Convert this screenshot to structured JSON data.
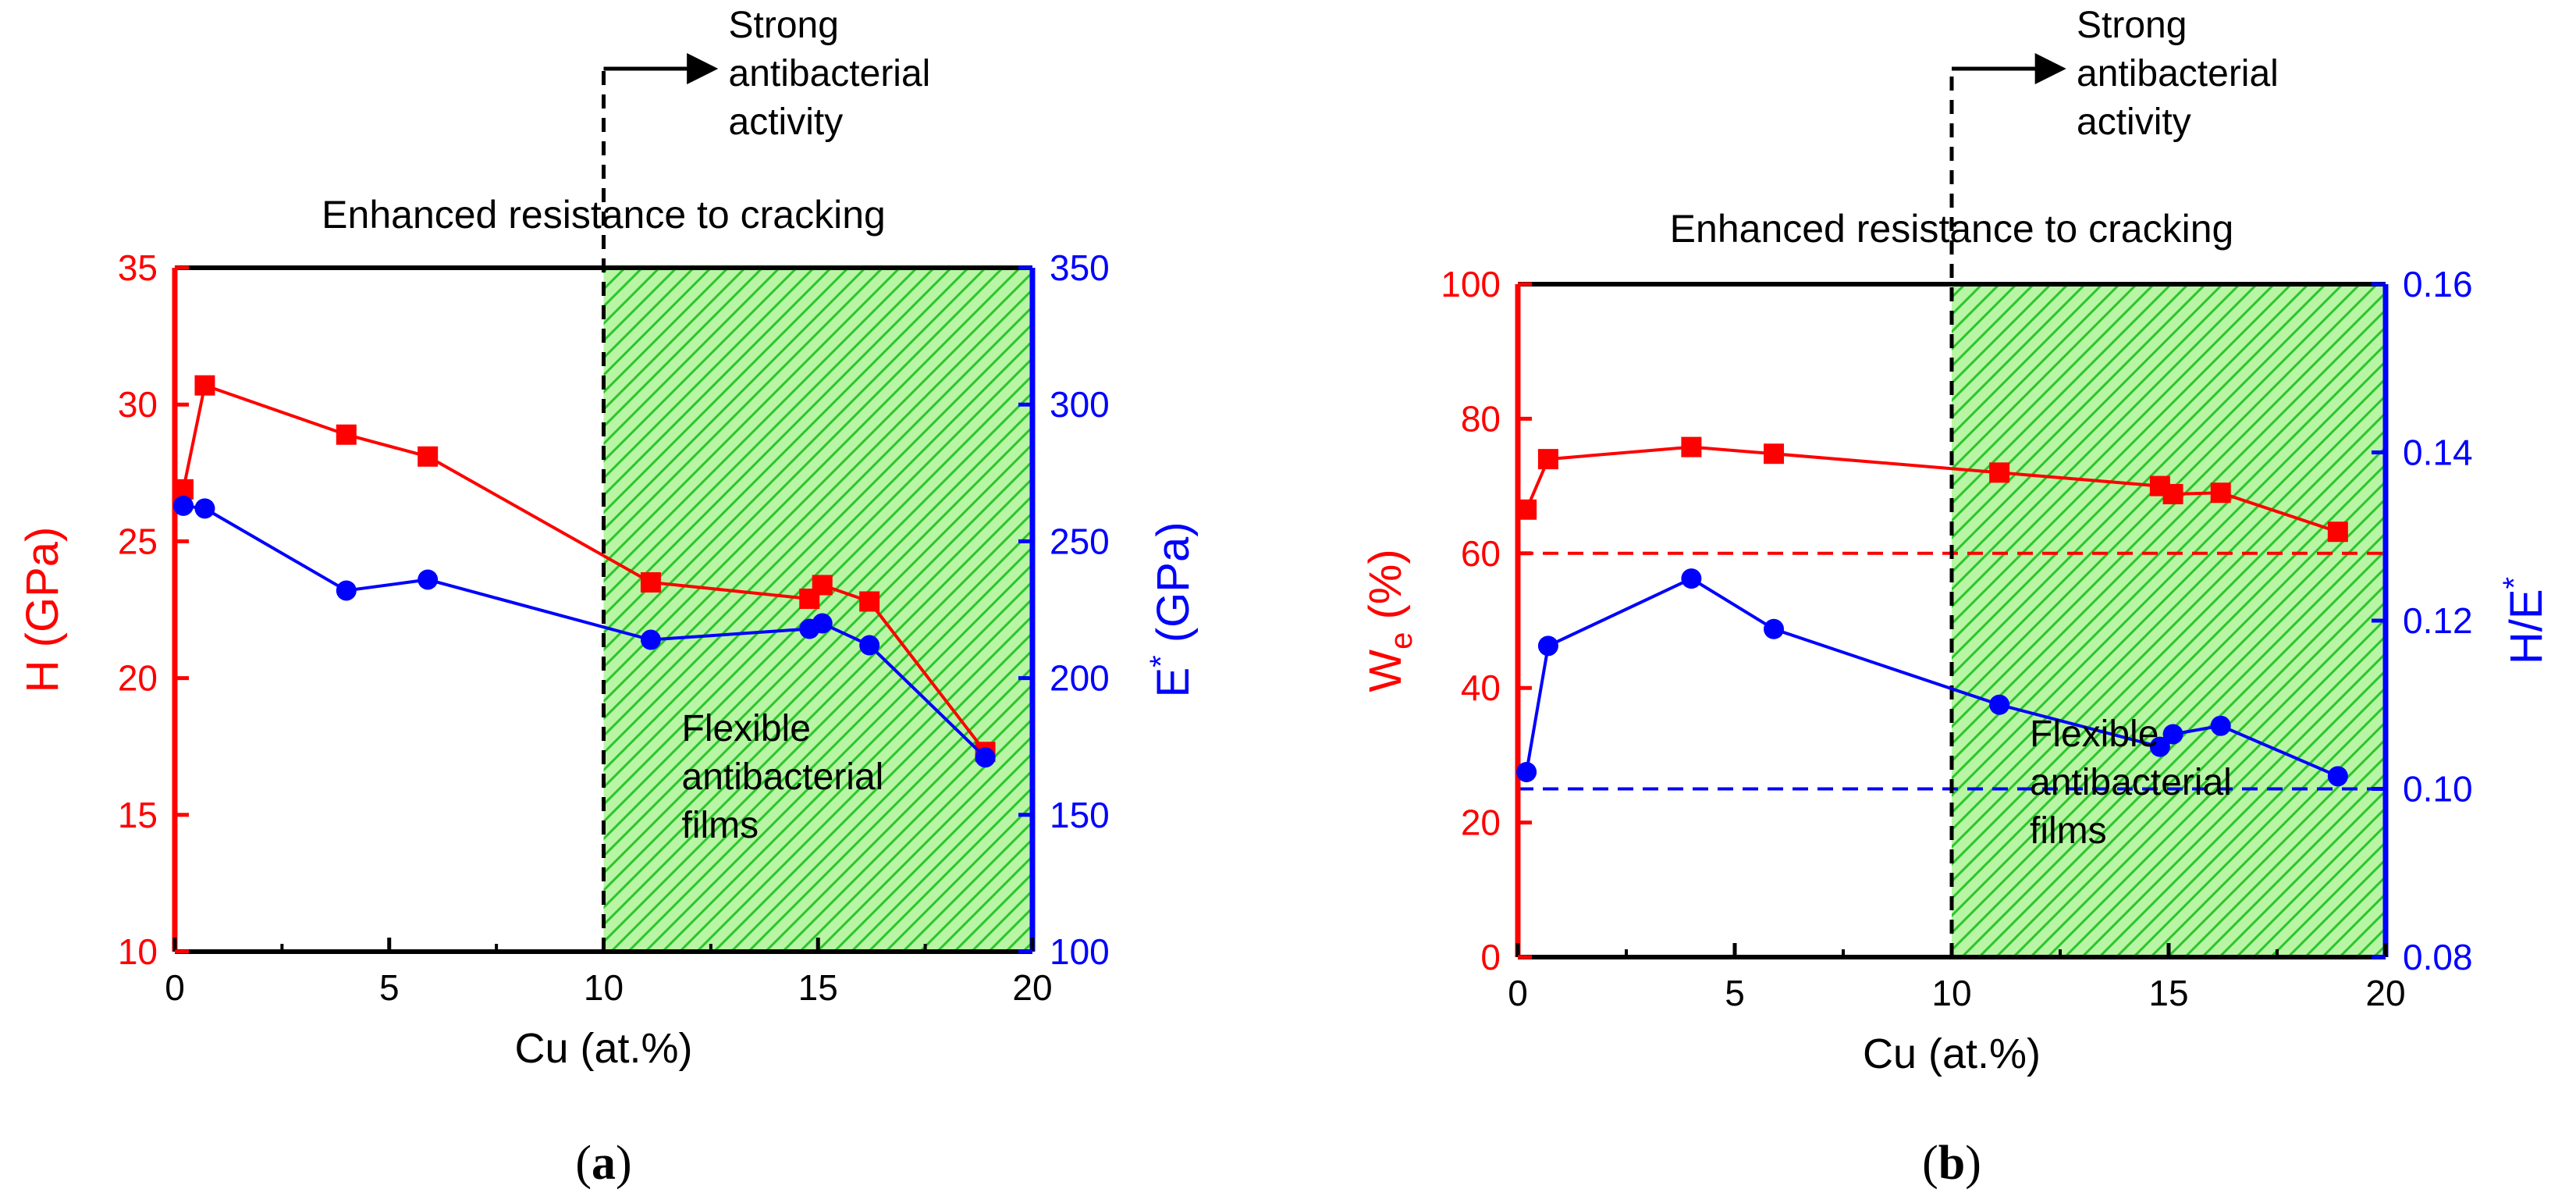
{
  "chart_data": [
    {
      "panel_label": "(a)",
      "panel_letter": "a",
      "type": "line",
      "xlabel": "Cu (at.%)",
      "xlim": [
        0,
        20
      ],
      "xticks": [
        0,
        5,
        10,
        15,
        20
      ],
      "ylabel_left": "H (GPa)",
      "ylabel_left_parts": {
        "main": "H (GPa)",
        "sub": "",
        "sup": "",
        "rest": ""
      },
      "ylim_left": [
        10,
        35
      ],
      "yticks_left": [
        10,
        15,
        20,
        25,
        30,
        35
      ],
      "ylabel_right": "E* (GPa)",
      "ylabel_right_parts": {
        "main": "E",
        "sub": "",
        "sup": "*",
        "rest": " (GPa)"
      },
      "ylim_right": [
        100,
        350
      ],
      "yticks_right": [
        100,
        150,
        200,
        250,
        300,
        350
      ],
      "left_axis_color": "#ff0000",
      "right_axis_color": "#0000ff",
      "series": [
        {
          "axis": "left",
          "marker": "square",
          "color": "#ff0000",
          "x": [
            0.2,
            0.7,
            4.0,
            5.9,
            11.1,
            14.8,
            15.1,
            16.2,
            18.9
          ],
          "y": [
            26.9,
            30.7,
            28.9,
            28.1,
            23.5,
            22.9,
            23.4,
            22.8,
            17.3
          ]
        },
        {
          "axis": "right",
          "marker": "circle",
          "color": "#0000ff",
          "x": [
            0.2,
            0.7,
            4.0,
            5.9,
            11.1,
            14.8,
            15.1,
            16.2,
            18.9
          ],
          "y": [
            263,
            262,
            232,
            236,
            214,
            218,
            220,
            212,
            171
          ]
        }
      ],
      "reference_lines": [],
      "shaded_region": {
        "x_start": 10,
        "x_end": 20,
        "color": "#b8f5a4",
        "hatch_color": "#2cc62c"
      },
      "vertical_marker": {
        "x": 10
      },
      "annotations": {
        "top_label": "Enhanced resistance to cracking",
        "arrow_label": [
          "Strong",
          "antibacterial",
          "activity"
        ],
        "region_label": [
          "Flexible",
          "antibacterial",
          "films"
        ]
      }
    },
    {
      "panel_label": "(b)",
      "panel_letter": "b",
      "type": "line",
      "xlabel": "Cu (at.%)",
      "xlim": [
        0,
        20
      ],
      "xticks": [
        0,
        5,
        10,
        15,
        20
      ],
      "ylabel_left": "We (%)",
      "ylabel_left_parts": {
        "main": "W",
        "sub": "e",
        "sup": "",
        "rest": " (%)"
      },
      "ylim_left": [
        0,
        100
      ],
      "yticks_left": [
        0,
        20,
        40,
        60,
        80,
        100
      ],
      "ylabel_right": "H/E*",
      "ylabel_right_parts": {
        "main": "H/E",
        "sub": "",
        "sup": "*",
        "rest": ""
      },
      "ylim_right": [
        0.08,
        0.16
      ],
      "yticks_right": [
        0.08,
        0.1,
        0.12,
        0.14,
        0.16
      ],
      "yticks_right_labels": [
        "0.08",
        "0.10",
        "0.12",
        "0.14",
        "0.16"
      ],
      "left_axis_color": "#ff0000",
      "right_axis_color": "#0000ff",
      "series": [
        {
          "axis": "left",
          "marker": "square",
          "color": "#ff0000",
          "x": [
            0.2,
            0.7,
            4.0,
            5.9,
            11.1,
            14.8,
            15.1,
            16.2,
            18.9
          ],
          "y": [
            66.5,
            74,
            75.8,
            74.8,
            72,
            70,
            68.8,
            69,
            63.2
          ]
        },
        {
          "axis": "right",
          "marker": "circle",
          "color": "#0000ff",
          "x": [
            0.2,
            0.7,
            4.0,
            5.9,
            11.1,
            14.8,
            15.1,
            16.2,
            18.9
          ],
          "y": [
            0.102,
            0.117,
            0.125,
            0.119,
            0.11,
            0.105,
            0.1065,
            0.1075,
            0.1015
          ]
        }
      ],
      "reference_lines": [
        {
          "axis": "left",
          "value": 60,
          "color": "#ff0000"
        },
        {
          "axis": "right",
          "value": 0.1,
          "color": "#0000ff"
        }
      ],
      "shaded_region": {
        "x_start": 10,
        "x_end": 20,
        "color": "#b8f5a4",
        "hatch_color": "#2cc62c"
      },
      "vertical_marker": {
        "x": 10
      },
      "annotations": {
        "top_label": "Enhanced resistance to cracking",
        "arrow_label": [
          "Strong",
          "antibacterial",
          "activity"
        ],
        "region_label": [
          "Flexible",
          "antibacterial",
          "films"
        ]
      }
    }
  ]
}
